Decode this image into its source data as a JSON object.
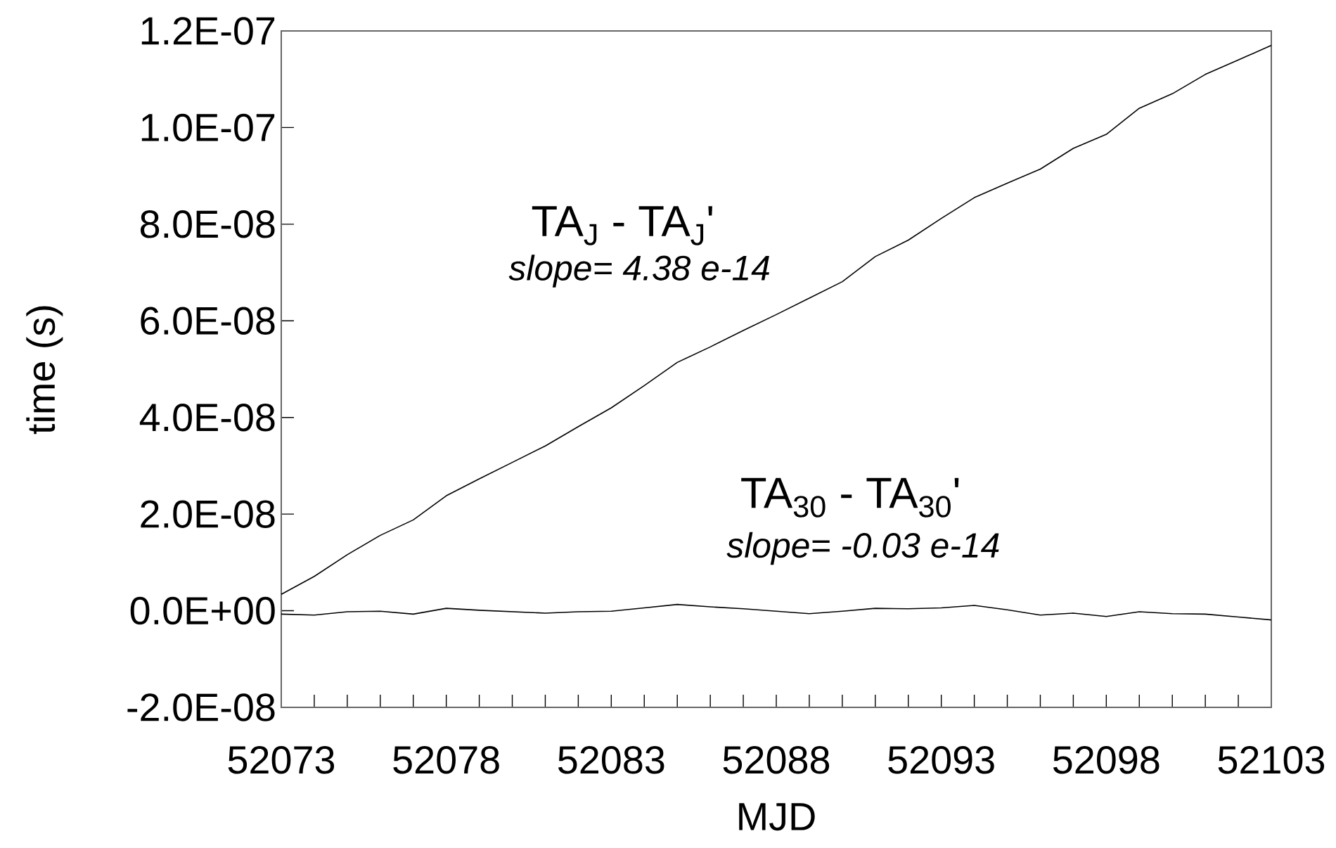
{
  "chart_data": {
    "type": "line",
    "xlabel": "MJD",
    "ylabel": "time (s)",
    "x": [
      52073,
      52074,
      52075,
      52076,
      52077,
      52078,
      52079,
      52080,
      52081,
      52082,
      52083,
      52084,
      52085,
      52086,
      52087,
      52088,
      52089,
      52090,
      52091,
      52092,
      52093,
      52094,
      52095,
      52096,
      52097,
      52098,
      52099,
      52100,
      52101,
      52102,
      52103
    ],
    "series": [
      {
        "color": "#000000",
        "values": [
          3.4e-09,
          7.1e-09,
          1.16e-08,
          1.56e-08,
          1.88e-08,
          2.38e-08,
          2.73e-08,
          3.07e-08,
          3.41e-08,
          3.81e-08,
          4.2e-08,
          4.66e-08,
          5.14e-08,
          5.46e-08,
          5.8e-08,
          6.13e-08,
          6.47e-08,
          6.81e-08,
          7.33e-08,
          7.67e-08,
          8.12e-08,
          8.55e-08,
          8.85e-08,
          9.14e-08,
          9.57e-08,
          9.86e-08,
          1.04e-07,
          1.07e-07,
          1.11e-07,
          1.14e-07,
          1.17e-07
        ]
      },
      {
        "color": "#000000",
        "values": [
          -7e-10,
          -9e-10,
          -2e-10,
          -1e-10,
          -7e-10,
          5e-10,
          1e-10,
          -2e-10,
          -5e-10,
          -2e-10,
          -1e-10,
          6e-10,
          1.3e-09,
          8e-10,
          4e-10,
          -1e-10,
          -6e-10,
          -1e-10,
          5e-10,
          4e-10,
          6e-10,
          1.1e-09,
          2e-10,
          -9e-10,
          -5e-10,
          -1.2e-09,
          -2e-10,
          -6e-10,
          -7e-10,
          -1.3e-09,
          -1.9e-09
        ]
      }
    ],
    "annotations": [
      "TA$_{J}$ - TA$_{J}$'",
      "slope= 4.38 e-14",
      "TA$_{30}$ - TA$_{30}$'",
      "slope= -0.03 e-14"
    ],
    "xlim": [
      52073,
      52103
    ],
    "xticks": [
      52073,
      {
        "value": 52074,
        "label": null
      },
      {
        "value": 52075,
        "label": null
      },
      {
        "value": 52076,
        "label": null
      },
      {
        "value": 52077,
        "label": null
      },
      52078,
      {
        "value": 52079,
        "label": null
      },
      {
        "value": 52080,
        "label": null
      },
      {
        "value": 52081,
        "label": null
      },
      {
        "value": 52082,
        "label": null
      },
      52083,
      {
        "value": 52084,
        "label": null
      },
      {
        "value": 52085,
        "label": null
      },
      {
        "value": 52086,
        "label": null
      },
      {
        "value": 52087,
        "label": null
      },
      52088,
      {
        "value": 52089,
        "label": null
      },
      {
        "value": 52090,
        "label": null
      },
      {
        "value": 52091,
        "label": null
      },
      {
        "value": 52092,
        "label": null
      },
      52093,
      {
        "value": 52094,
        "label": null
      },
      {
        "value": 52095,
        "label": null
      },
      {
        "value": 52096,
        "label": null
      },
      {
        "value": 52097,
        "label": null
      },
      52098,
      {
        "value": 52099,
        "label": null
      },
      {
        "value": 52100,
        "label": null
      },
      {
        "value": 52101,
        "label": null
      },
      {
        "value": 52102,
        "label": null
      },
      52103
    ],
    "ylim": [
      -2e-08,
      1.2e-07
    ],
    "yticks": [
      {
        "value": -2e-08,
        "label": "-2.0E-08"
      },
      {
        "value": 0,
        "label": "0.0E+00"
      },
      {
        "value": 2e-08,
        "label": "2.0E-08"
      },
      {
        "value": 4e-08,
        "label": "4.0E-08"
      },
      {
        "value": 6e-08,
        "label": "6.0E-08"
      },
      {
        "value": 8e-08,
        "label": "8.0E-08"
      },
      {
        "value": 1e-07,
        "label": "1.0E-07"
      },
      {
        "value": 1.2e-07,
        "label": "1.2E-07"
      }
    ],
    "grid": false,
    "marker": "none",
    "line_style": "solid"
  }
}
